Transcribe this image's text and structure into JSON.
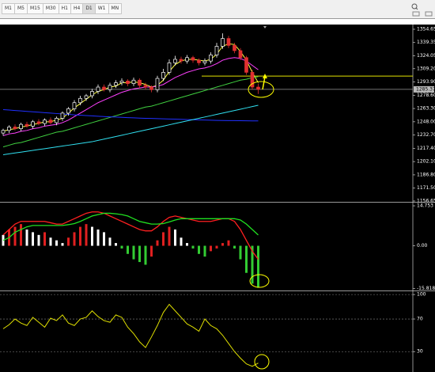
{
  "toolbar": {
    "timeframes": [
      "M1",
      "M5",
      "M15",
      "M30",
      "H1",
      "H4",
      "D1",
      "W1",
      "MN"
    ],
    "active_index": 6
  },
  "chart_data": [
    {
      "type": "candlestick",
      "up_color": "#ffffff",
      "down_color": "#e03030",
      "open": [
        1235,
        1238,
        1242,
        1240,
        1245,
        1243,
        1248,
        1246,
        1250,
        1247,
        1252,
        1258,
        1263,
        1270,
        1275,
        1278,
        1283,
        1288,
        1285,
        1290,
        1293,
        1295,
        1292,
        1296,
        1290,
        1288,
        1285,
        1298,
        1305,
        1316,
        1320,
        1318,
        1322,
        1319,
        1316,
        1318,
        1325,
        1335,
        1344,
        1336,
        1330,
        1322,
        1305,
        1288
      ],
      "high": [
        1240,
        1244,
        1245,
        1247,
        1248,
        1250,
        1251,
        1252,
        1253,
        1254,
        1260,
        1265,
        1273,
        1278,
        1280,
        1286,
        1291,
        1291,
        1293,
        1296,
        1298,
        1297,
        1299,
        1298,
        1293,
        1290,
        1301,
        1309,
        1320,
        1324,
        1323,
        1325,
        1324,
        1321,
        1321,
        1328,
        1339,
        1350,
        1347,
        1339,
        1333,
        1324,
        1308,
        1292
      ],
      "low": [
        1232,
        1235,
        1238,
        1237,
        1241,
        1240,
        1244,
        1243,
        1245,
        1244,
        1249,
        1255,
        1260,
        1267,
        1272,
        1275,
        1280,
        1283,
        1282,
        1287,
        1290,
        1289,
        1289,
        1287,
        1285,
        1282,
        1282,
        1295,
        1302,
        1313,
        1315,
        1315,
        1316,
        1313,
        1313,
        1315,
        1322,
        1332,
        1333,
        1327,
        1319,
        1302,
        1285,
        1280
      ],
      "close": [
        1238,
        1242,
        1240,
        1245,
        1243,
        1248,
        1246,
        1250,
        1247,
        1252,
        1258,
        1263,
        1270,
        1275,
        1278,
        1283,
        1288,
        1285,
        1290,
        1293,
        1295,
        1292,
        1296,
        1290,
        1288,
        1285,
        1298,
        1305,
        1316,
        1320,
        1318,
        1322,
        1319,
        1316,
        1318,
        1325,
        1335,
        1344,
        1336,
        1330,
        1322,
        1305,
        1288,
        1285.37
      ],
      "series": [
        {
          "color": "#ffff40",
          "values": [
            1237,
            1239,
            1240,
            1242,
            1243,
            1245,
            1246,
            1248,
            1248,
            1250,
            1252,
            1258,
            1264,
            1269,
            1274,
            1279,
            1283,
            1285,
            1288,
            1289,
            1293,
            1293,
            1294,
            1293,
            1291,
            1288,
            1290,
            1296,
            1306,
            1314,
            1318,
            1320,
            1320,
            1319,
            1318,
            1320,
            1326,
            1335,
            1338,
            1337,
            1329,
            1319,
            1305,
            1293
          ]
        },
        {
          "color": "#ff40ff",
          "values": [
            1232,
            1234,
            1235,
            1237,
            1238,
            1240,
            1241,
            1243,
            1244,
            1245,
            1247,
            1250,
            1254,
            1258,
            1262,
            1266,
            1270,
            1273,
            1276,
            1279,
            1282,
            1284,
            1286,
            1287,
            1288,
            1288,
            1289,
            1291,
            1295,
            1299,
            1302,
            1305,
            1307,
            1309,
            1310,
            1312,
            1315,
            1319,
            1321,
            1322,
            1321,
            1318,
            1313,
            1308
          ]
        },
        {
          "color": "#40d040",
          "values": [
            1219,
            1221,
            1223,
            1224,
            1226,
            1228,
            1230,
            1232,
            1234,
            1236,
            1237,
            1239,
            1241,
            1243,
            1245,
            1247,
            1249,
            1251,
            1253,
            1255,
            1257,
            1259,
            1261,
            1263,
            1265,
            1266,
            1268,
            1270,
            1272,
            1274,
            1276,
            1278,
            1280,
            1282,
            1284,
            1286,
            1288,
            1290,
            1292,
            1294,
            1296,
            1297,
            1299,
            1300
          ]
        },
        {
          "color": "#2030ff",
          "values": [
            1262,
            1261.5,
            1261,
            1260.5,
            1260,
            1259.5,
            1259,
            1258.5,
            1258,
            1257.5,
            1257,
            1256.5,
            1256,
            1255.6,
            1255.2,
            1254.8,
            1254.4,
            1254,
            1253.7,
            1253.4,
            1253.1,
            1252.8,
            1252.5,
            1252.2,
            1252,
            1251.8,
            1251.6,
            1251.4,
            1251.2,
            1251,
            1250.8,
            1250.6,
            1250.4,
            1250.2,
            1250,
            1249.8,
            1249.6,
            1249.5,
            1249.4,
            1249.3,
            1249.2,
            1249.1,
            1249,
            1249
          ]
        },
        {
          "color": "#30e0f0",
          "values": [
            1210,
            1211,
            1212,
            1213,
            1214,
            1215,
            1216,
            1217,
            1218,
            1219,
            1220,
            1221,
            1222,
            1223,
            1224,
            1225,
            1226.5,
            1228,
            1229.5,
            1231,
            1232.5,
            1234,
            1235.5,
            1237,
            1238.5,
            1240,
            1241.5,
            1243,
            1244.5,
            1246,
            1247.5,
            1249,
            1250.5,
            1252,
            1253.5,
            1255,
            1256.5,
            1258,
            1259.5,
            1261,
            1262.5,
            1264,
            1265.5,
            1267
          ]
        }
      ],
      "horizontal_line": {
        "value": 1300.7,
        "color": "#e0e000"
      },
      "last_price": 1285.37,
      "ylim": [
        1155.7,
        1360.1
      ],
      "yticks": [
        1354.65,
        1339.35,
        1324.05,
        {
          "value": 1309.2,
          "label": "1309.20"
        },
        {
          "value": 1293.9,
          "label": "1293.90"
        },
        {
          "value": 1278.6,
          "label": "1278.60"
        },
        {
          "value": 1263.3,
          "label": "1263.30"
        },
        {
          "value": 1248,
          "label": "1248.00"
        },
        {
          "value": 1232.7,
          "label": "1232.70"
        },
        {
          "value": 1217.4,
          "label": "1217.40"
        },
        {
          "value": 1202.1,
          "label": "1202.10"
        },
        {
          "value": 1186.8,
          "label": "1186.80"
        },
        {
          "value": 1171.5,
          "label": "1171.50"
        },
        1156.65
      ]
    },
    {
      "type": "macd",
      "histogram": [
        4,
        6,
        7,
        8,
        6,
        5,
        4,
        5,
        3,
        2,
        1,
        3,
        5,
        7,
        8,
        7,
        6,
        5,
        3,
        1,
        -1,
        -3,
        -5,
        -6,
        -7,
        -4,
        2,
        5,
        7,
        6,
        3,
        1,
        -1,
        -3,
        -4,
        -2,
        -1,
        1,
        2,
        -1,
        -5,
        -10,
        -14,
        -15.5
      ],
      "rising_color": "#e02020",
      "falling_positive_color": "#ffffff",
      "falling_negative_color": "#33cc33",
      "series": [
        {
          "color": "#ff2020",
          "values": [
            4,
            6,
            8,
            9,
            9,
            9,
            9,
            9,
            8.5,
            8,
            8,
            9,
            10,
            11,
            12,
            12.5,
            12.5,
            12,
            11,
            10,
            9,
            8,
            7,
            6,
            5.5,
            5.5,
            7,
            9,
            10.5,
            11,
            10.5,
            10,
            9.5,
            9,
            9,
            9,
            9.5,
            10,
            10,
            9,
            6,
            2,
            -2,
            -5
          ]
        },
        {
          "color": "#20e020",
          "values": [
            2,
            3,
            5,
            6,
            7,
            7.5,
            7.5,
            7.5,
            7.5,
            7.5,
            7.5,
            7.8,
            8.2,
            9,
            10,
            11,
            11.5,
            12,
            12,
            11.8,
            11.5,
            11,
            10,
            9,
            8.5,
            8,
            8,
            8.2,
            8.8,
            9.5,
            10,
            10,
            10,
            10,
            10,
            10,
            10,
            10,
            10,
            10,
            9.5,
            8,
            6,
            4
          ]
        }
      ],
      "ylim": [
        -16.5,
        15.93
      ],
      "yticks": [
        14.753,
        {
          "value": 0,
          "label": "0.00"
        },
        -15.8189
      ]
    },
    {
      "type": "line",
      "series": [
        {
          "color": "#e0e000",
          "values": [
            58,
            63,
            70,
            65,
            62,
            72,
            66,
            60,
            71,
            68,
            75,
            65,
            62,
            70,
            72,
            80,
            73,
            68,
            66,
            75,
            72,
            60,
            52,
            42,
            35,
            48,
            62,
            78,
            88,
            80,
            72,
            64,
            60,
            55,
            70,
            62,
            58,
            50,
            40,
            30,
            22,
            15,
            12,
            16
          ]
        }
      ],
      "ylim": [
        5,
        104
      ],
      "yticks": [
        100,
        70,
        30
      ]
    }
  ]
}
